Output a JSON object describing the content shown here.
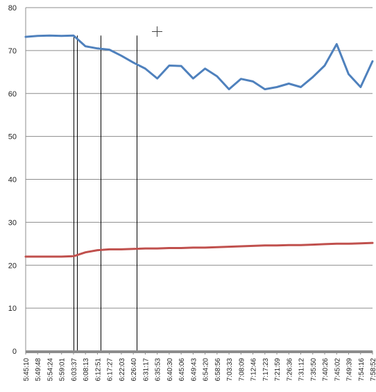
{
  "chart_data": {
    "type": "line",
    "title": "",
    "xlabel": "",
    "ylabel": "",
    "ylim": [
      0,
      80
    ],
    "yticks": [
      "0",
      "10",
      "20",
      "30",
      "40",
      "50",
      "60",
      "70",
      "80"
    ],
    "grid": "horizontal",
    "legend": "none",
    "x": [
      "5:45:10",
      "5:49:48",
      "5:54:24",
      "5:59:01",
      "6:03:37",
      "6:08:13",
      "6:12:51",
      "6:17:27",
      "6:22:03",
      "6:26:40",
      "6:31:17",
      "6:35:53",
      "6:40:30",
      "6:45:06",
      "6:49:43",
      "6:54:20",
      "6:58:56",
      "7:03:33",
      "7:08:09",
      "7:12:46",
      "7:17:23",
      "7:21:59",
      "7:26:36",
      "7:31:12",
      "7:35:50",
      "7:40:26",
      "7:45:02",
      "7:49:39",
      "7:54:16",
      "7:58:52"
    ],
    "series": [
      {
        "color": "#4f81bd",
        "values": [
          73.2,
          73.4,
          73.5,
          73.4,
          73.5,
          71.0,
          70.5,
          70.2,
          68.8,
          67.2,
          65.8,
          63.5,
          66.5,
          66.4,
          63.5,
          65.8,
          64.0,
          61.0,
          63.4,
          62.8,
          61.0,
          61.5,
          62.3,
          61.5,
          63.8,
          66.5,
          71.5,
          64.5,
          61.5,
          67.5
        ]
      },
      {
        "color": "#c0504d",
        "values": [
          22.0,
          22.0,
          22.0,
          22.0,
          22.1,
          23.0,
          23.5,
          23.7,
          23.7,
          23.8,
          23.9,
          23.9,
          24.0,
          24.0,
          24.1,
          24.1,
          24.2,
          24.3,
          24.4,
          24.5,
          24.6,
          24.6,
          24.7,
          24.7,
          24.8,
          24.9,
          25.0,
          25.0,
          25.1,
          25.2
        ]
      }
    ],
    "markers": [
      "6:03:37",
      "6:05:00",
      "6:14:00",
      "6:28:00"
    ]
  }
}
